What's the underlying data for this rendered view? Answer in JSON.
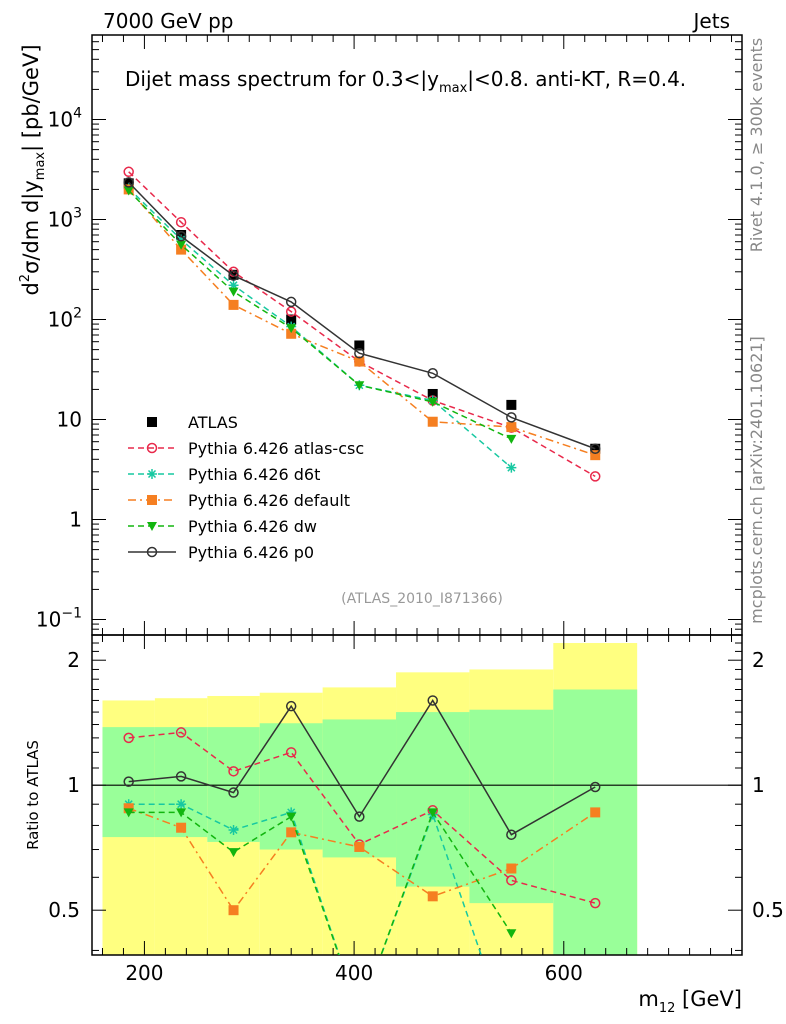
{
  "header": {
    "left_label": "7000 GeV pp",
    "right_label": "Jets"
  },
  "side_labels": {
    "rivet": "Rivet 4.1.0, ≥ 300k events",
    "mcplots": "mcplots.cern.ch [arXiv:2401.10621]"
  },
  "chart_data": {
    "type": "line",
    "title": "Dijet mass spectrum for 0.3<|y_max|<0.8.  anti-KT, R=0.4.",
    "title_parts": [
      "Dijet mass spectrum for 0.3<|y",
      "max",
      "|<0.8.  anti-KT, R=0.4."
    ],
    "analysis_tag": "(ATLAS_2010_I871366)",
    "xlabel": "m12 [GeV]",
    "xlabel_parts": [
      "m",
      "12",
      " [GeV]"
    ],
    "ylabel": "d2σ/dm d|ymax| [pb/GeV]",
    "ratio_ylabel": "Ratio to ATLAS",
    "x_range": [
      150,
      770
    ],
    "main_y_range": [
      0.07,
      70000
    ],
    "main_y_scale": "log",
    "ratio_y_range": [
      0.39,
      2.3
    ],
    "ratio_y_scale": "log",
    "x_ticks": [
      200,
      400,
      600
    ],
    "main_y_ticks": [
      "10^-1",
      "1",
      "10",
      "10^2",
      "10^3",
      "10^4"
    ],
    "ratio_y_ticks": [
      "0.5",
      "1",
      "2"
    ],
    "legend_position": "middle-left",
    "x_bins": [
      [
        160,
        210
      ],
      [
        210,
        260
      ],
      [
        260,
        310
      ],
      [
        310,
        370
      ],
      [
        370,
        440
      ],
      [
        440,
        510
      ],
      [
        510,
        590
      ],
      [
        590,
        670
      ]
    ],
    "x": [
      185,
      235,
      285,
      340,
      405,
      475,
      550,
      630
    ],
    "series": [
      {
        "name": "ATLAS",
        "style": "data",
        "color": "#000000",
        "marker": "square-filled",
        "values": [
          2300,
          700,
          280,
          100,
          55,
          18,
          14,
          5.1
        ]
      },
      {
        "name": "Pythia 6.426 atlas-csc",
        "style": "dashed",
        "color": "#e8294b",
        "marker": "circle-open",
        "values": [
          3000,
          940,
          300,
          120,
          38,
          15.5,
          8.3,
          2.7
        ],
        "ratio": [
          1.3,
          1.34,
          1.08,
          1.2,
          0.72,
          0.87,
          0.59,
          0.52
        ]
      },
      {
        "name": "Pythia 6.426 d6t",
        "style": "dashed",
        "color": "#17c8a1",
        "marker": "star",
        "values": [
          2050,
          630,
          220,
          85,
          22,
          15.5,
          3.3,
          null
        ],
        "ratio": [
          0.9,
          0.9,
          0.78,
          0.86,
          0.28,
          0.85,
          0.24,
          null
        ]
      },
      {
        "name": "Pythia 6.426 default",
        "style": "dashdot",
        "color": "#f57f21",
        "marker": "square-filled",
        "values": [
          2000,
          500,
          140,
          72,
          38,
          9.5,
          8.4,
          4.4
        ],
        "ratio": [
          0.88,
          0.79,
          0.5,
          0.77,
          0.71,
          0.54,
          0.63,
          0.86
        ]
      },
      {
        "name": "Pythia 6.426 dw",
        "style": "dashed",
        "color": "#12b50f",
        "marker": "triangle-down-filled",
        "values": [
          1950,
          560,
          190,
          82,
          22,
          15,
          6.4,
          null
        ],
        "ratio": [
          0.86,
          0.86,
          0.69,
          0.84,
          0.28,
          0.86,
          0.44,
          null
        ]
      },
      {
        "name": "Pythia 6.426 p0",
        "style": "solid",
        "color": "#333333",
        "marker": "circle-open",
        "values": [
          2350,
          680,
          275,
          150,
          46,
          29,
          10.5,
          5.1
        ],
        "ratio": [
          1.02,
          1.05,
          0.96,
          1.55,
          0.84,
          1.6,
          0.76,
          0.99
        ]
      }
    ],
    "ratio_bands": {
      "inner": [
        [
          0.75,
          1.38
        ],
        [
          0.75,
          1.38
        ],
        [
          0.73,
          1.38
        ],
        [
          0.7,
          1.41
        ],
        [
          0.67,
          1.44
        ],
        [
          0.57,
          1.5
        ],
        [
          0.52,
          1.52
        ],
        [
          0.38,
          1.7
        ]
      ],
      "outer": [
        [
          0.37,
          1.6
        ],
        [
          0.37,
          1.62
        ],
        [
          0.35,
          1.64
        ],
        [
          0.33,
          1.67
        ],
        [
          0.32,
          1.72
        ],
        [
          0.3,
          1.87
        ],
        [
          0.29,
          1.9
        ],
        [
          0.27,
          2.2
        ]
      ]
    }
  }
}
